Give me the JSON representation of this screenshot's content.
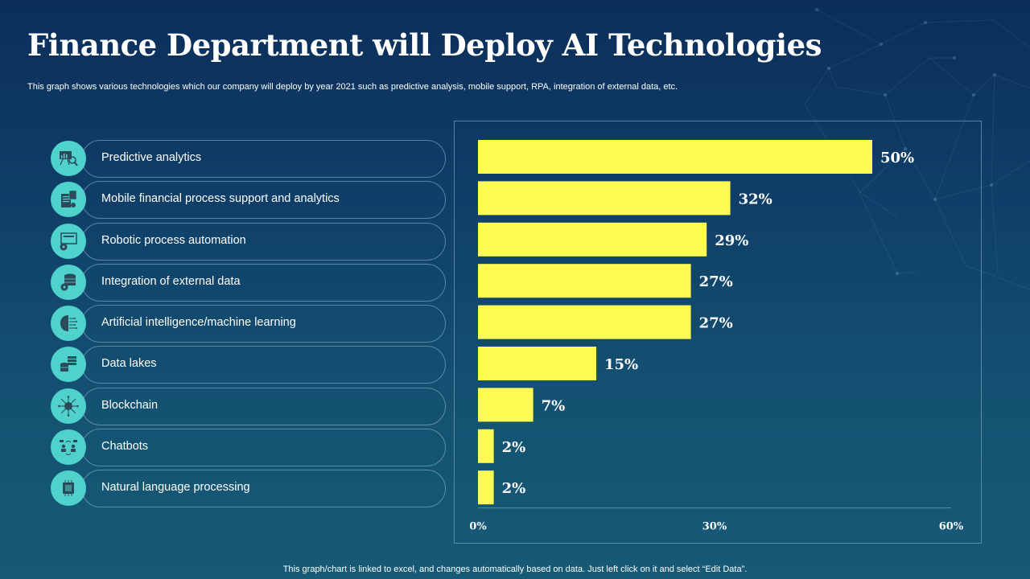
{
  "title": "Finance Department will Deploy AI Technologies",
  "subtitle": "This graph shows various technologies which our company will deploy by year 2021 such as predictive analysis, mobile support, RPA, integration of external data, etc.",
  "footer": "This graph/chart is linked to excel,  and changes automatically based on data. Just left click on it and select “Edit Data”.",
  "colors": {
    "bar": "#fdfa54",
    "icon_circle": "#4fd1cc",
    "icon_glyph": "#2b4a5a"
  },
  "technologies": [
    {
      "label": "Predictive analytics",
      "icon": "presentation-chart-magnifier-icon"
    },
    {
      "label": "Mobile financial process support and analytics",
      "icon": "calculator-report-icon"
    },
    {
      "label": "Robotic process automation",
      "icon": "monitor-gear-icon"
    },
    {
      "label": "Integration of external data",
      "icon": "database-gear-icon"
    },
    {
      "label": "Artificial intelligence/machine learning",
      "icon": "brain-circuit-icon"
    },
    {
      "label": "Data lakes",
      "icon": "database-stack-icon"
    },
    {
      "label": "Blockchain",
      "icon": "network-hub-icon"
    },
    {
      "label": "Chatbots",
      "icon": "users-chat-icon"
    },
    {
      "label": "Natural language processing",
      "icon": "chip-chat-icon"
    }
  ],
  "chart_data": {
    "type": "bar",
    "orientation": "horizontal",
    "categories": [
      "Predictive analytics",
      "Mobile financial process support and analytics",
      "Robotic process automation",
      "Integration of external data",
      "Artificial intelligence/machine learning",
      "Data lakes",
      "Blockchain",
      "Chatbots",
      "Natural language processing"
    ],
    "values": [
      50,
      32,
      29,
      27,
      27,
      15,
      7,
      2,
      2
    ],
    "data_labels": [
      "50%",
      "32%",
      "29%",
      "27%",
      "27%",
      "15%",
      "7%",
      "2%",
      "2%"
    ],
    "title": "",
    "xlabel": "",
    "ylabel": "",
    "xlim": [
      0,
      60
    ],
    "x_ticks": [
      0,
      30,
      60
    ],
    "x_tick_labels": [
      "0%",
      "30%",
      "60%"
    ],
    "grid": false,
    "legend": "none"
  }
}
